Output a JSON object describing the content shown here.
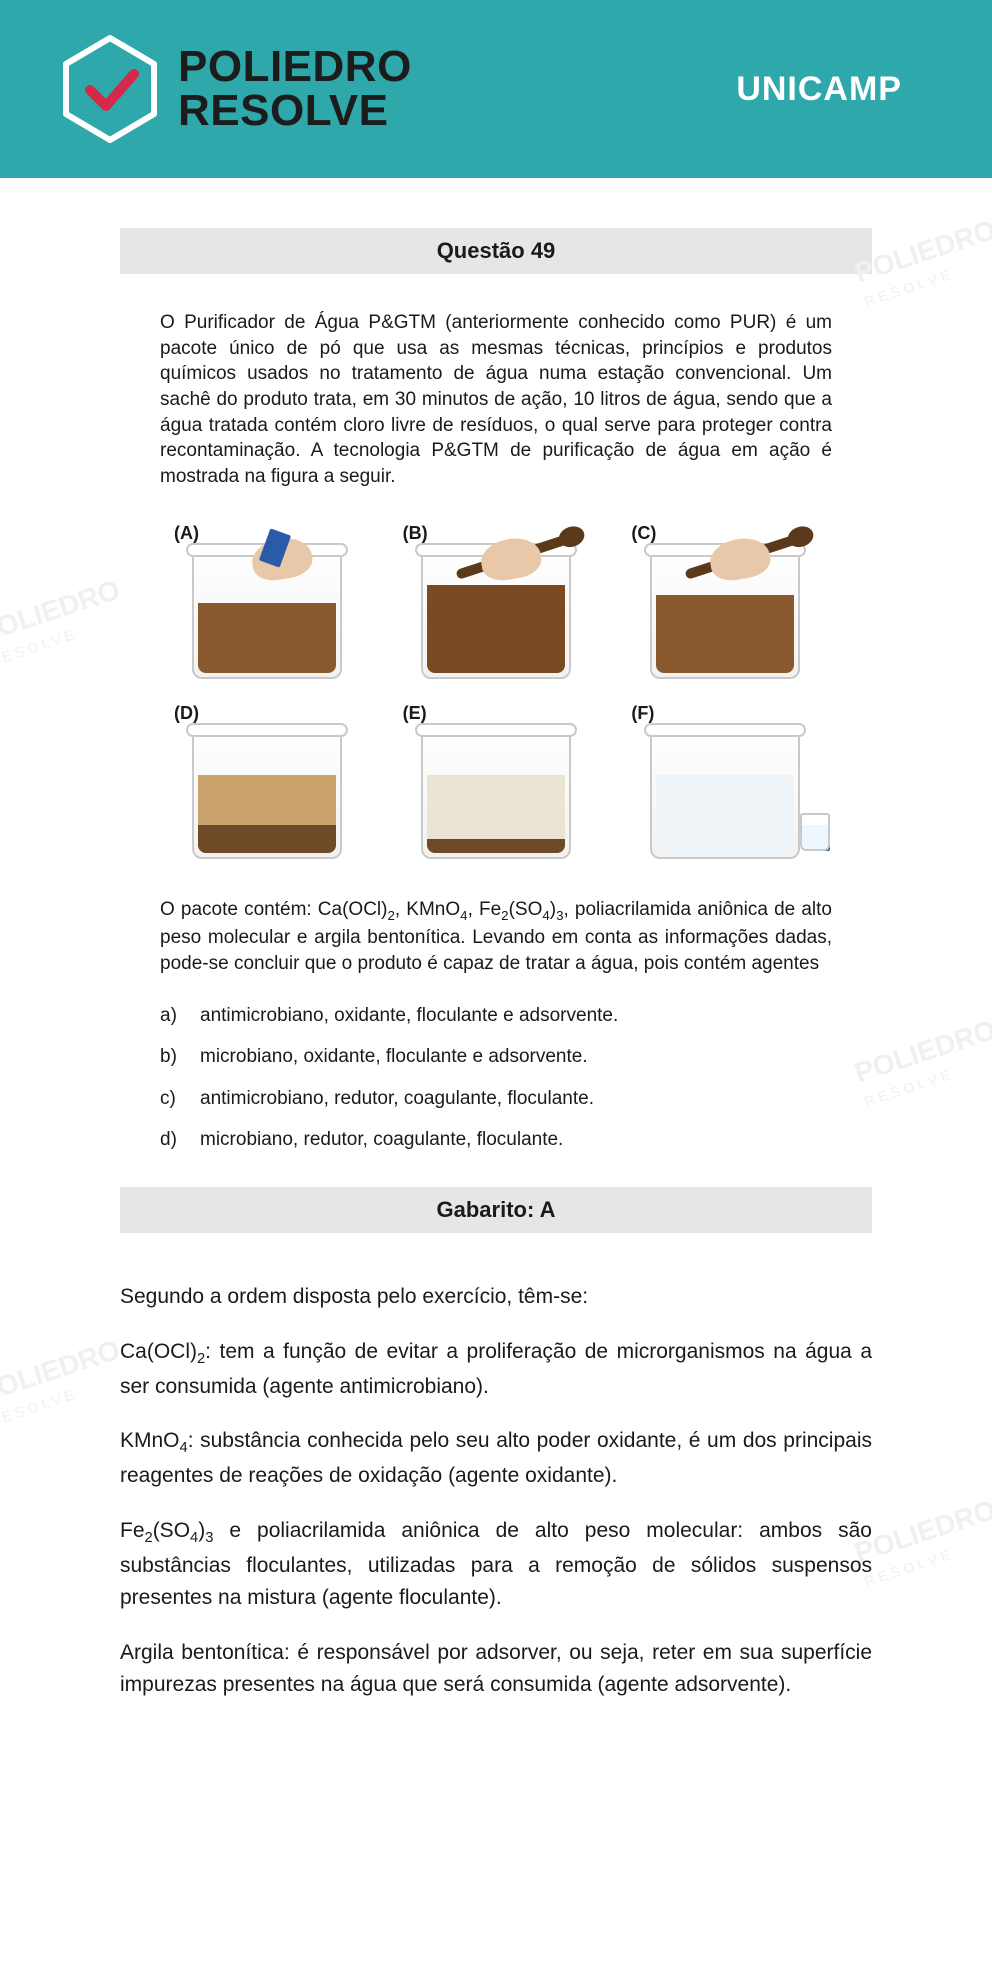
{
  "banner": {
    "brand_line1": "POLIEDRO",
    "brand_line2": "RESOLVE",
    "right_label": "UNICAMP",
    "bg_color": "#2fa8ab",
    "check_color": "#d6284b"
  },
  "watermark": {
    "line1": "POLIEDRO",
    "line2": "RESOLVE"
  },
  "question": {
    "title": "Questão 49",
    "intro": "O Purificador de Água P&GTM (anteriormente conhecido como PUR) é um pacote único de pó que usa as mesmas técnicas, princípios e produtos químicos usados no tratamento de água numa estação convencional. Um sachê do produto trata, em 30 minutos de ação, 10 litros de água, sendo que a água tratada contém cloro livre de resíduos, o qual serve para proteger contra recontaminação. A tecnologia P&GTM de purificação de água em ação é mostrada na figura a seguir.",
    "buckets": [
      {
        "label": "(A)",
        "water_color": "#8a5a2e",
        "water_height": 70,
        "sediment_color": null,
        "sediment_height": 0,
        "hand": true,
        "packet": true,
        "spoon": false,
        "cup": false
      },
      {
        "label": "(B)",
        "water_color": "#7a4a22",
        "water_height": 88,
        "sediment_color": null,
        "sediment_height": 0,
        "hand": true,
        "packet": false,
        "spoon": true,
        "cup": false
      },
      {
        "label": "(C)",
        "water_color": "#8a5a2e",
        "water_height": 78,
        "sediment_color": null,
        "sediment_height": 0,
        "hand": true,
        "packet": false,
        "spoon": true,
        "cup": false
      },
      {
        "label": "(D)",
        "water_color": "#c9a36b",
        "water_height": 78,
        "sediment_color": "#6e4a26",
        "sediment_height": 28,
        "hand": false,
        "packet": false,
        "spoon": false,
        "cup": false
      },
      {
        "label": "(E)",
        "water_color": "#e9e4d4",
        "water_height": 78,
        "sediment_color": "#6e4a26",
        "sediment_height": 14,
        "hand": false,
        "packet": false,
        "spoon": false,
        "cup": false
      },
      {
        "label": "(F)",
        "water_color": "#eef4f7",
        "water_height": 78,
        "sediment_color": null,
        "sediment_height": 0,
        "hand": false,
        "packet": true,
        "spoon": false,
        "cup": true
      }
    ],
    "post_text_html": "O pacote contém: Ca(OCl)<sub>2</sub>, KMnO<sub>4</sub>, Fe<sub>2</sub>(SO<sub>4</sub>)<sub>3</sub>, poliacrilamida aniônica de alto peso molecular e argila bentonítica. Levando em conta as informações dadas, pode-se concluir que o produto é capaz de tratar a água, pois contém agentes",
    "options": [
      {
        "letter": "a)",
        "text": "antimicrobiano, oxidante, floculante e adsorvente."
      },
      {
        "letter": "b)",
        "text": "microbiano, oxidante, floculante e adsorvente."
      },
      {
        "letter": "c)",
        "text": "antimicrobiano, redutor, coagulante, floculante."
      },
      {
        "letter": "d)",
        "text": "microbiano, redutor, coagulante, floculante."
      }
    ],
    "gabarito": "Gabarito: A"
  },
  "explanation": {
    "lead": "Segundo a ordem disposta pelo exercício, têm-se:",
    "items": [
      {
        "html": "Ca(OCl)<sub>2</sub>: tem a função de evitar a proliferação de microrganismos na água a ser consumida (agente antimicrobiano)."
      },
      {
        "html": "KMnO<sub>4</sub>: substância conhecida pelo seu alto poder oxidante, é um dos principais reagentes de reações de oxidação (agente oxidante)."
      },
      {
        "html": "Fe<sub>2</sub>(SO<sub>4</sub>)<sub>3</sub> e poliacrilamida aniônica de alto peso molecular: ambos são substâncias floculantes, utilizadas para a remoção de sólidos suspensos presentes na mistura (agente floculante)."
      },
      {
        "html": "Argila bentonítica: é responsável por adsorver, ou seja, reter em sua superfície impurezas presentes na água que será consumida (agente adsorvente)."
      }
    ]
  }
}
